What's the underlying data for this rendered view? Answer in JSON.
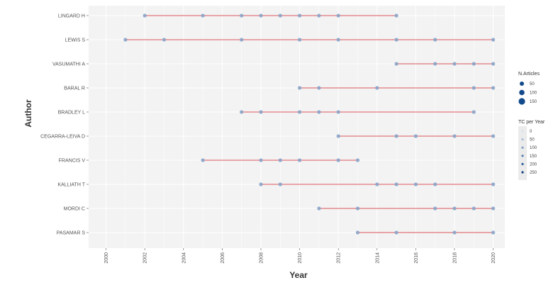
{
  "chart_data": {
    "type": "scatter",
    "xlabel": "Year",
    "ylabel": "Author",
    "xlim": [
      1999.1,
      2020.6
    ],
    "x_ticks": [
      "2000",
      "2002",
      "2004",
      "2006",
      "2008",
      "2010",
      "2012",
      "2014",
      "2016",
      "2018",
      "2020"
    ],
    "grid": true,
    "colors": {
      "panel": "#f3f3f3",
      "grid": "#ffffff",
      "line": "#e8a5a8",
      "point": "#8aa4c8"
    },
    "authors": [
      {
        "name": "LINGARD H",
        "years": [
          2002,
          2005,
          2007,
          2008,
          2009,
          2010,
          2011,
          2012,
          2015
        ]
      },
      {
        "name": "LEWIS S",
        "years": [
          2001,
          2003,
          2007,
          2010,
          2012,
          2015,
          2017,
          2020
        ]
      },
      {
        "name": "VASUMATHI A",
        "years": [
          2015,
          2017,
          2018,
          2019,
          2020
        ]
      },
      {
        "name": "BARAL R",
        "years": [
          2010,
          2011,
          2014,
          2019,
          2020
        ]
      },
      {
        "name": "BRADLEY L",
        "years": [
          2007,
          2008,
          2010,
          2011,
          2012,
          2019
        ]
      },
      {
        "name": "CEGARRA-LEIVA D",
        "years": [
          2012,
          2015,
          2016,
          2018,
          2020
        ]
      },
      {
        "name": "FRANCIS V",
        "years": [
          2005,
          2008,
          2009,
          2010,
          2012,
          2013
        ]
      },
      {
        "name": "KALLIATH T",
        "years": [
          2008,
          2009,
          2014,
          2015,
          2016,
          2017,
          2020
        ]
      },
      {
        "name": "MORDI C",
        "years": [
          2011,
          2013,
          2017,
          2018,
          2019,
          2020
        ]
      },
      {
        "name": "PASAMAR S",
        "years": [
          2013,
          2015,
          2018,
          2020
        ]
      }
    ],
    "legend": {
      "placement": "right",
      "size_title": "N.Articles",
      "size_items": [
        "50",
        "100",
        "150"
      ],
      "color_title": "TC per Year",
      "color_items": [
        "0",
        "50",
        "100",
        "150",
        "200",
        "250"
      ]
    }
  }
}
